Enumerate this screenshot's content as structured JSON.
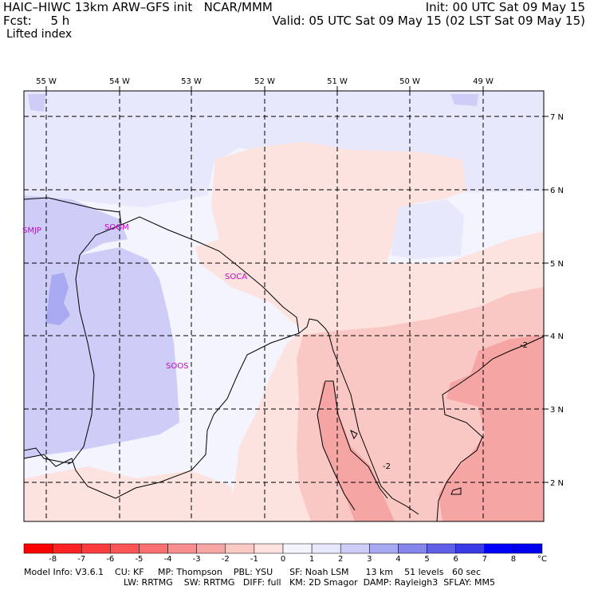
{
  "header": {
    "line1_left": "HAIC–HIWC 13km ARW–GFS init   NCAR/MMM",
    "line1_right": "Init: 00 UTC Sat 09 May 15",
    "line2_left": "Fcst:     5 h",
    "line2_right": "Valid: 05 UTC Sat 09 May 15 (02 LST Sat 09 May 15)",
    "line3_left": "Lifted index"
  },
  "map": {
    "lon_labels": [
      "55 W",
      "54 W",
      "53 W",
      "52 W",
      "51 W",
      "50 W",
      "49 W"
    ],
    "lat_labels": [
      "7 N",
      "6 N",
      "5 N",
      "4 N",
      "3 N",
      "2 N"
    ],
    "stations": [
      "SMJP",
      "SOGM",
      "SOCA",
      "SOOS"
    ],
    "contour_labels": [
      "-2",
      "-2"
    ],
    "colors": {
      "neg1": "#fce3e0",
      "neg2": "#fac8c4",
      "neg3": "#f5a5a3",
      "pos1": "#e8e8fc",
      "pos2": "#cdcdf8",
      "pos3": "#a9a9f2",
      "station": "#cc00cc"
    }
  },
  "colorbar": {
    "labels": [
      "-8",
      "-7",
      "-6",
      "-5",
      "-4",
      "-3",
      "-2",
      "-1",
      "0",
      "1",
      "2",
      "3",
      "4",
      "5",
      "6",
      "7",
      "8"
    ],
    "unit": "°C",
    "colors": [
      "#ff0000",
      "#fe2222",
      "#fd3d3d",
      "#fb5555",
      "#fa7070",
      "#f88e8e",
      "#f5a5a3",
      "#fac8c4",
      "#fce3e0",
      "#f4f4fe",
      "#e8e8fc",
      "#cdcdf8",
      "#a9a9f2",
      "#8585ec",
      "#5f5fe8",
      "#3a3ae6",
      "#0000ff",
      "#0000f0"
    ]
  },
  "footer": {
    "line1": "Model Info: V3.6.1    CU: KF     MP: Thompson    PBL: YSU      SF: Noah LSM      13 km    51 levels   60 sec",
    "line2": "LW: RRTMG    SW: RRTMG   DIFF: full   KM: 2D Smagor  DAMP: Rayleigh3  SFLAY: MM5"
  }
}
